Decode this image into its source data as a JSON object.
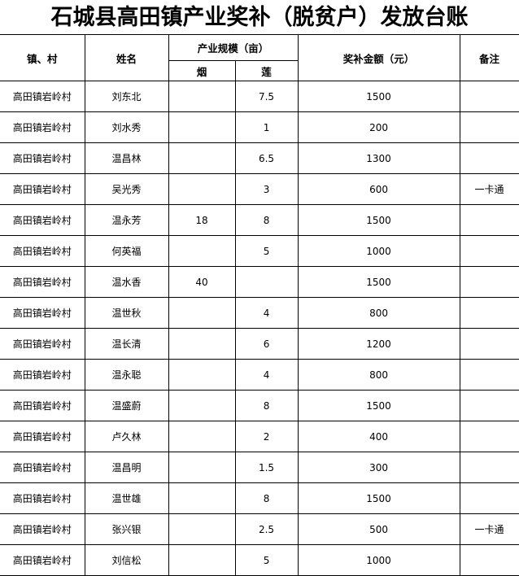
{
  "title": "石城县高田镇产业奖补（脱贫户）发放台账",
  "headers": {
    "village": "镇、村",
    "name": "姓名",
    "scale": "产业规模（亩）",
    "tobacco": "烟",
    "lotus": "莲",
    "amount": "奖补金额（元）",
    "remark": "备注"
  },
  "rows": [
    {
      "village": "高田镇岩岭村",
      "name": "刘东北",
      "tobacco": "",
      "lotus": "7.5",
      "amount": "1500",
      "remark": ""
    },
    {
      "village": "高田镇岩岭村",
      "name": "刘水秀",
      "tobacco": "",
      "lotus": "1",
      "amount": "200",
      "remark": ""
    },
    {
      "village": "高田镇岩岭村",
      "name": "温昌林",
      "tobacco": "",
      "lotus": "6.5",
      "amount": "1300",
      "remark": ""
    },
    {
      "village": "高田镇岩岭村",
      "name": "吴光秀",
      "tobacco": "",
      "lotus": "3",
      "amount": "600",
      "remark": "一卡通"
    },
    {
      "village": "高田镇岩岭村",
      "name": "温永芳",
      "tobacco": "18",
      "lotus": "8",
      "amount": "1500",
      "remark": ""
    },
    {
      "village": "高田镇岩岭村",
      "name": "何英福",
      "tobacco": "",
      "lotus": "5",
      "amount": "1000",
      "remark": ""
    },
    {
      "village": "高田镇岩岭村",
      "name": "温水香",
      "tobacco": "40",
      "lotus": "",
      "amount": "1500",
      "remark": ""
    },
    {
      "village": "高田镇岩岭村",
      "name": "温世秋",
      "tobacco": "",
      "lotus": "4",
      "amount": "800",
      "remark": ""
    },
    {
      "village": "高田镇岩岭村",
      "name": "温长清",
      "tobacco": "",
      "lotus": "6",
      "amount": "1200",
      "remark": ""
    },
    {
      "village": "高田镇岩岭村",
      "name": "温永聪",
      "tobacco": "",
      "lotus": "4",
      "amount": "800",
      "remark": ""
    },
    {
      "village": "高田镇岩岭村",
      "name": "温盛蔚",
      "tobacco": "",
      "lotus": "8",
      "amount": "1500",
      "remark": ""
    },
    {
      "village": "高田镇岩岭村",
      "name": "卢久林",
      "tobacco": "",
      "lotus": "2",
      "amount": "400",
      "remark": ""
    },
    {
      "village": "高田镇岩岭村",
      "name": "温昌明",
      "tobacco": "",
      "lotus": "1.5",
      "amount": "300",
      "remark": ""
    },
    {
      "village": "高田镇岩岭村",
      "name": "温世雄",
      "tobacco": "",
      "lotus": "8",
      "amount": "1500",
      "remark": ""
    },
    {
      "village": "高田镇岩岭村",
      "name": "张兴银",
      "tobacco": "",
      "lotus": "2.5",
      "amount": "500",
      "remark": "一卡通"
    },
    {
      "village": "高田镇岩岭村",
      "name": "刘信松",
      "tobacco": "",
      "lotus": "5",
      "amount": "1000",
      "remark": ""
    }
  ]
}
